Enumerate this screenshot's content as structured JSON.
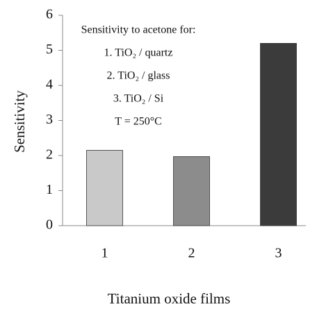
{
  "chart_data": {
    "type": "bar",
    "categories": [
      "1",
      "2",
      "3"
    ],
    "values": [
      2.15,
      1.97,
      5.2
    ],
    "colors": [
      "#c9c9c9",
      "#8c8c8c",
      "#3b3b3b"
    ],
    "ylim": [
      0,
      6
    ],
    "yticks": [
      0,
      1,
      2,
      3,
      4,
      5,
      6
    ],
    "y_label": "Sensitivity",
    "x_label": "Titanium oxide films",
    "annotations": [
      "Sensitivity to acetone for:",
      "1. TiO₂ / quartz",
      "2. TiO₂ / glass",
      "3. TiO₂ / Si",
      "T = 250°C"
    ]
  }
}
